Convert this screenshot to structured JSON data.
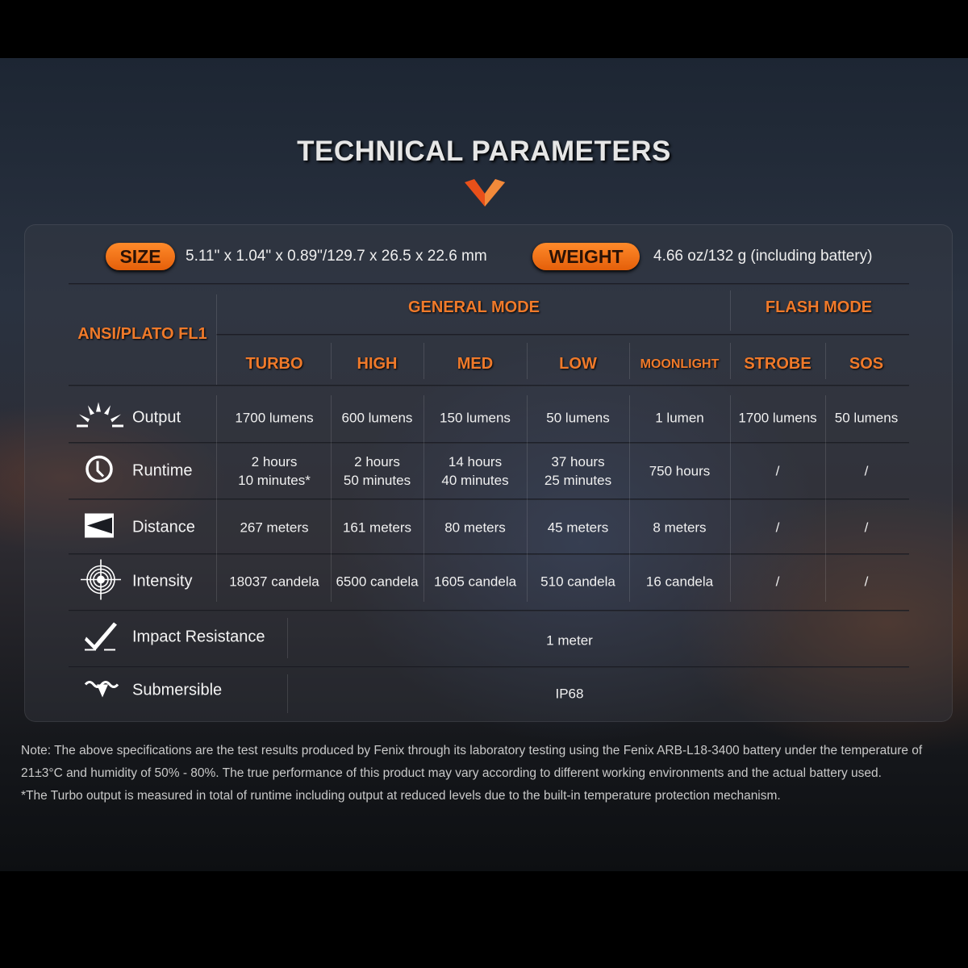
{
  "title": "TECHNICAL PARAMETERS",
  "colors": {
    "accent": "#f07a2a",
    "pill": "#f07a1a"
  },
  "size": {
    "label": "SIZE",
    "value": "5.11\" x 1.04\" x 0.89\"/129.7 x 26.5 x 22.6 mm"
  },
  "weight": {
    "label": "WEIGHT",
    "value": "4.66 oz/132 g (including battery)"
  },
  "table": {
    "standard": "ANSI/PLATO FL1",
    "groups": [
      "GENERAL MODE",
      "FLASH MODE"
    ],
    "modes": [
      "TURBO",
      "HIGH",
      "MED",
      "LOW",
      "MOONLIGHT",
      "STROBE",
      "SOS"
    ],
    "rows": [
      {
        "label": "Output",
        "icon": "sun-burst-icon",
        "values": [
          "1700 lumens",
          "600 lumens",
          "150 lumens",
          "50 lumens",
          "1 lumen",
          "1700 lumens",
          "50 lumens"
        ]
      },
      {
        "label": "Runtime",
        "icon": "clock-icon",
        "values": [
          "2 hours\n10 minutes*",
          "2 hours\n50 minutes",
          "14 hours\n40 minutes",
          "37 hours\n25 minutes",
          "750 hours",
          "/",
          "/"
        ]
      },
      {
        "label": "Distance",
        "icon": "beam-distance-icon",
        "values": [
          "267 meters",
          "161 meters",
          "80 meters",
          "45 meters",
          "8 meters",
          "/",
          "/"
        ]
      },
      {
        "label": "Intensity",
        "icon": "target-icon",
        "values": [
          "18037 candela",
          "6500 candela",
          "1605 candela",
          "510 candela",
          "16 candela",
          "/",
          "/"
        ]
      }
    ],
    "impact": {
      "label": "Impact Resistance",
      "icon": "impact-icon",
      "value": "1 meter"
    },
    "submersible": {
      "label": "Submersible",
      "icon": "water-icon",
      "value": "IP68"
    }
  },
  "notes": [
    "Note: The above specifications are the test results produced by Fenix through its laboratory testing using the Fenix ARB-L18-3400 battery under the temperature of 21±3°C and humidity of 50% - 80%. The true performance of this product may vary according to different working environments and the actual battery used.",
    "*The Turbo output is measured in total of runtime including output at reduced levels due to the built-in temperature protection mechanism."
  ]
}
